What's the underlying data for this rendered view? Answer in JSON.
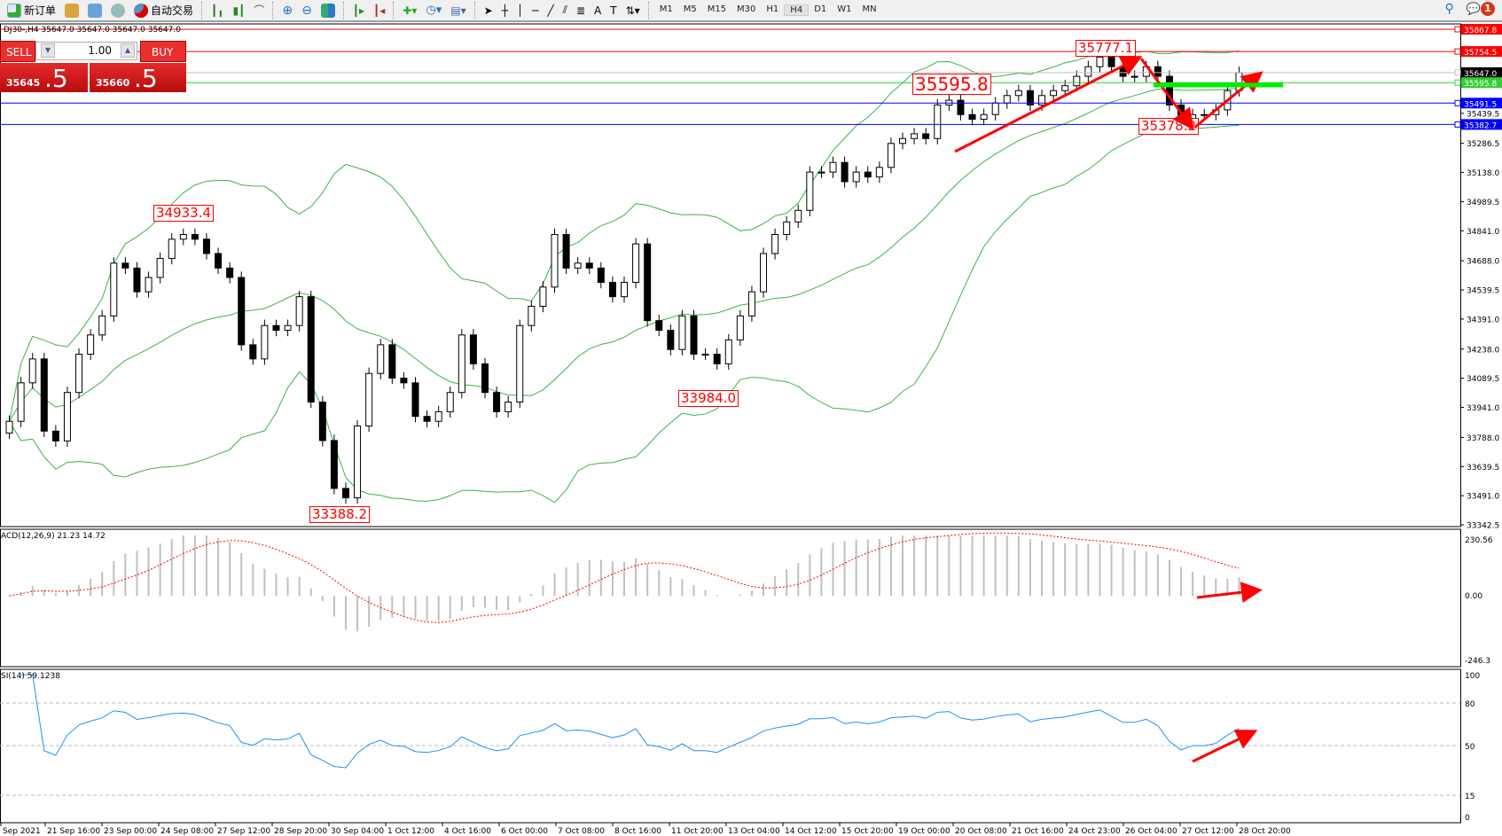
{
  "toolbar": {
    "new_order": "新订单",
    "auto_trading": "自动交易",
    "timeframes": [
      "M1",
      "M5",
      "M15",
      "M30",
      "H1",
      "H4",
      "D1",
      "W1",
      "MN"
    ],
    "active_timeframe": "H4",
    "notifications": "1"
  },
  "chart_header": "DJ30-,H4  35647.0 35647.0 35647.0 35647.0",
  "one_click": {
    "sell": "SELL",
    "buy": "BUY",
    "volume": "1.00",
    "bid_small": "35645",
    "bid_big": ".5",
    "ask_small": "35660",
    "ask_big": ".5"
  },
  "annotations": [
    "34933.4",
    "33388.2",
    "33984.0",
    "35595.8",
    "35777.1",
    "35378.2"
  ],
  "macd_label": "ACD(12,26,9) 21.23 14.72",
  "rsi_label": "SI(14) 59.1238",
  "colors": {
    "bull": "#ffffff",
    "bear": "#000000",
    "bands": "#3cb34a",
    "signal": "#ff0000",
    "rsi": "#1e90ff",
    "histogram": "#c0c0c0"
  },
  "chart_data": {
    "type": "candlestick",
    "symbol": "DJ30-",
    "timeframe": "H4",
    "ylim": [
      33342.5,
      35867.8
    ],
    "price_ticks": [
      "35439.5",
      "35286.5",
      "35138.0",
      "34989.5",
      "34841.0",
      "34688.0",
      "34539.5",
      "34391.0",
      "34238.0",
      "34089.5",
      "33941.0",
      "33788.0",
      "33639.5",
      "33491.0",
      "33342.5"
    ],
    "levels": [
      {
        "price": "35867.8",
        "color": "#ff0000"
      },
      {
        "price": "35754.5",
        "color": "#ff0000"
      },
      {
        "price": "35647.0",
        "color": "#000000",
        "line": "#c0c0c0"
      },
      {
        "price": "35595.8",
        "color": "#32cd32"
      },
      {
        "price": "35491.5",
        "color": "#0000ff"
      },
      {
        "price": "35382.7",
        "color": "#0000ff"
      }
    ],
    "close": [
      33870,
      34066,
      34188,
      33820,
      33770,
      34017,
      34212,
      34310,
      34407,
      34676,
      34651,
      34530,
      34603,
      34700,
      34798,
      34822,
      34798,
      34725,
      34651,
      34603,
      34260,
      34188,
      34358,
      34334,
      34358,
      34505,
      33968,
      33772,
      33528,
      33480,
      33846,
      34114,
      34260,
      34090,
      34066,
      33895,
      33870,
      33919,
      34017,
      34310,
      34163,
      34017,
      33919,
      33968,
      34358,
      34456,
      34554,
      34822,
      34651,
      34676,
      34651,
      34578,
      34505,
      34578,
      34774,
      34383,
      34334,
      34236,
      34407,
      34212,
      34212,
      34163,
      34285,
      34407,
      34530,
      34725,
      34822,
      34886,
      34945,
      35140,
      35140,
      35189,
      35091,
      35140,
      35115,
      35164,
      35286,
      35311,
      35335,
      35311,
      35482,
      35506,
      35433,
      35409,
      35433,
      35492,
      35530,
      35555,
      35482,
      35530,
      35555,
      35580,
      35628,
      35677,
      35726,
      35677,
      35628,
      35628,
      35677,
      35628,
      35482,
      35384,
      35433,
      35433,
      35457,
      35555,
      35647
    ],
    "x_ticks": [
      "Sep 2021",
      "21 Sep 16:00",
      "23 Sep 00:00",
      "24 Sep 08:00",
      "27 Sep 12:00",
      "28 Sep 20:00",
      "30 Sep 04:00",
      "1 Oct 12:00",
      "4 Oct 16:00",
      "6 Oct 00:00",
      "7 Oct 08:00",
      "8 Oct 16:00",
      "11 Oct 20:00",
      "13 Oct 04:00",
      "14 Oct 12:00",
      "15 Oct 20:00",
      "19 Oct 00:00",
      "20 Oct 08:00",
      "21 Oct 16:00",
      "24 Oct 23:00",
      "26 Oct 04:00",
      "27 Oct 12:00",
      "28 Oct 20:00"
    ],
    "indicators": {
      "bollinger": [
        20,
        2
      ],
      "macd": {
        "params": [
          12,
          26,
          9
        ],
        "ylim": [
          -246.3,
          230.56
        ],
        "ticks": [
          "230.56",
          "0.00",
          "-246.3"
        ]
      },
      "rsi": {
        "period": 14,
        "ylim": [
          0,
          100
        ],
        "levels": [
          80,
          50,
          15
        ],
        "ticks": [
          "100",
          "80",
          "50",
          "15",
          "0"
        ]
      }
    }
  }
}
